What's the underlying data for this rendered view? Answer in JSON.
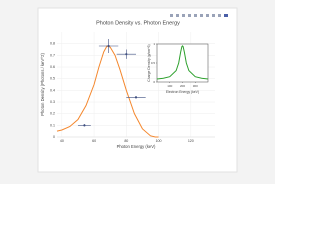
{
  "chart_data": [
    {
      "type": "line",
      "title": "Photon Density vs. Photon Energy",
      "x_label": "Photon Energy (keV)",
      "y_label": "Photon Density (Photons / keV^2)",
      "x": [
        37,
        40,
        45,
        50,
        55,
        60,
        63,
        66,
        68,
        70,
        73,
        76,
        80,
        85,
        90,
        95,
        98,
        100
      ],
      "values": [
        0.05,
        0.06,
        0.09,
        0.15,
        0.27,
        0.45,
        0.6,
        0.73,
        0.78,
        0.77,
        0.7,
        0.58,
        0.4,
        0.2,
        0.07,
        0.01,
        0,
        0
      ],
      "color": "#f4872d",
      "points": {
        "x": [
          54,
          69,
          80,
          86
        ],
        "values": [
          0.1,
          0.78,
          0.71,
          0.34
        ],
        "x_error": [
          4,
          6,
          6,
          6
        ],
        "y_error": [
          0.01,
          0.06,
          0.04,
          0.01
        ],
        "color": "#3f4f80"
      },
      "xlim": [
        37,
        135
      ],
      "xticks": [
        40,
        60,
        80,
        100,
        120
      ],
      "ylim": [
        0,
        0.9
      ],
      "yticks": [
        0,
        0.1,
        0.2,
        0.3,
        0.4,
        0.5,
        0.6,
        0.7,
        0.8
      ],
      "grid": true
    },
    {
      "type": "line",
      "x_label": "Electron Energy (keV)",
      "y_label": "Charge Density (g/cm^3)",
      "x": [
        0,
        50,
        100,
        150,
        170,
        185,
        195,
        200,
        205,
        215,
        230,
        250,
        300,
        350,
        400
      ],
      "values": [
        0.08,
        0.1,
        0.14,
        0.3,
        0.5,
        0.78,
        0.93,
        0.95,
        0.93,
        0.78,
        0.5,
        0.3,
        0.14,
        0.1,
        0.08
      ],
      "color": "#2ca02c",
      "xlim": [
        0,
        400
      ],
      "xticks": [
        100,
        200,
        300
      ],
      "ylim": [
        0,
        1
      ],
      "yticks": [
        0,
        0.5,
        1
      ],
      "grid": false
    }
  ]
}
